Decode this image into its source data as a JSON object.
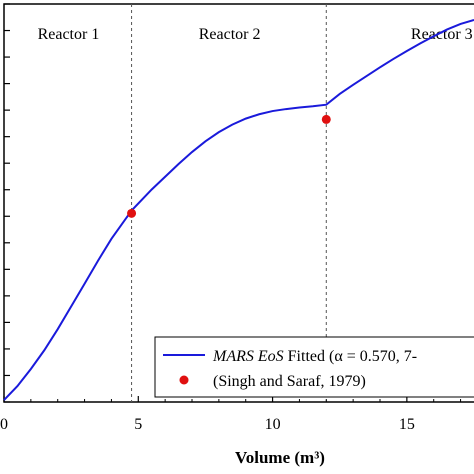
{
  "chart_data": {
    "type": "line",
    "xlabel": "Volume (m³)",
    "xlim": [
      0,
      17.5
    ],
    "x_ticks": [
      0,
      5,
      10,
      15
    ],
    "x_tick_labels": [
      "0",
      "5",
      "10",
      "15"
    ],
    "ylim": [
      0,
      1
    ],
    "y_tick_count": 15,
    "reactor_boundaries": [
      4.75,
      12.0
    ],
    "regions": [
      {
        "label": "Reactor 1",
        "x_center": 2.4
      },
      {
        "label": "Reactor 2",
        "x_center": 8.4
      },
      {
        "label": "Reactor 3",
        "x_center": 16.3
      }
    ],
    "series": [
      {
        "name": "MARS EoS Fitted (α = 0.570, 7-",
        "name_italic": "MARS EoS",
        "name_rest": " Fitted (α = 0.570, 7-",
        "style": "line",
        "color": "#1a1adb",
        "x": [
          0,
          0.5,
          1,
          1.5,
          2,
          2.5,
          3,
          3.5,
          4,
          4.75,
          5.5,
          6,
          6.5,
          7,
          7.5,
          8,
          8.5,
          9,
          9.5,
          10,
          10.5,
          11,
          11.5,
          12,
          12.5,
          13,
          13.5,
          14,
          14.5,
          15,
          15.5,
          16,
          16.5,
          17,
          17.5
        ],
        "y": [
          0.005,
          0.04,
          0.083,
          0.13,
          0.183,
          0.24,
          0.297,
          0.355,
          0.41,
          0.481,
          0.534,
          0.566,
          0.598,
          0.628,
          0.655,
          0.678,
          0.697,
          0.712,
          0.723,
          0.731,
          0.736,
          0.74,
          0.743,
          0.747,
          0.774,
          0.797,
          0.819,
          0.841,
          0.862,
          0.882,
          0.901,
          0.919,
          0.936,
          0.95,
          0.96
        ]
      },
      {
        "name": "(Singh and Saraf, 1979)",
        "style": "markers",
        "color": "#e01010",
        "x": [
          4.75,
          12.0
        ],
        "y": [
          0.474,
          0.71
        ]
      }
    ]
  }
}
